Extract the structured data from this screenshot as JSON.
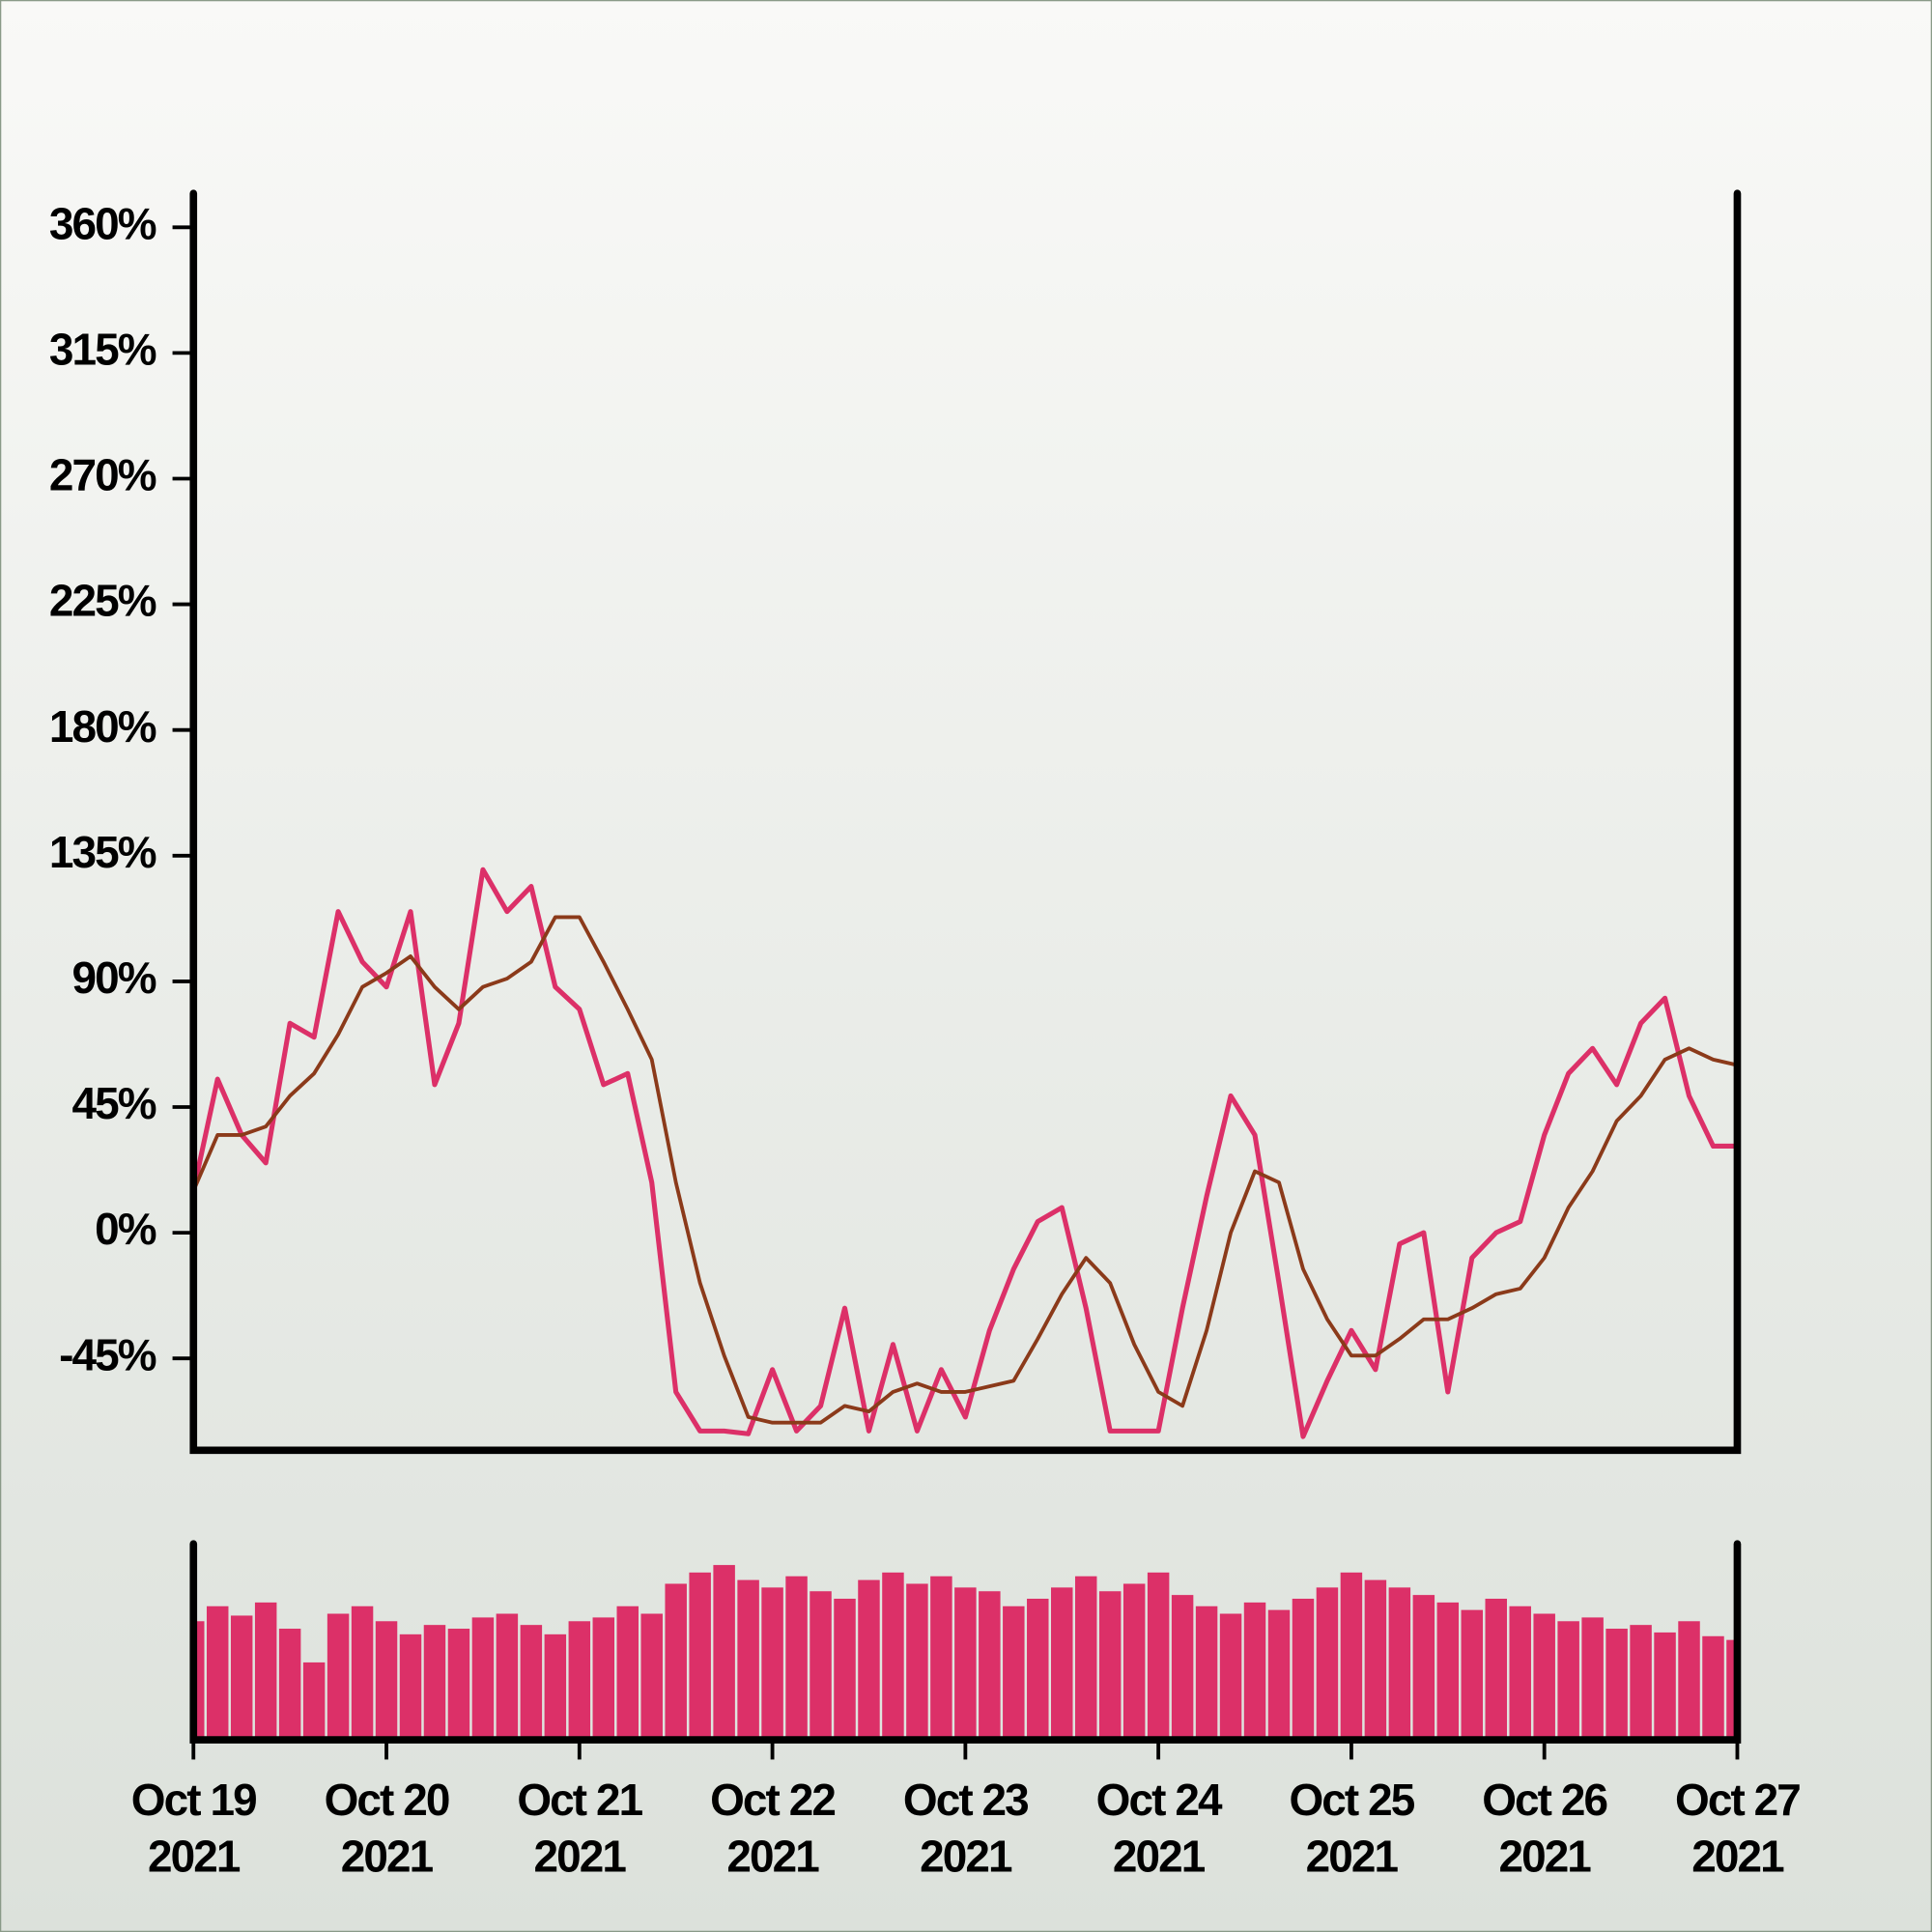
{
  "chart_data": [
    {
      "type": "line",
      "x": [
        "2021-10-19T00:00",
        "2021-10-19T03:00",
        "2021-10-19T06:00",
        "2021-10-19T09:00",
        "2021-10-19T12:00",
        "2021-10-19T15:00",
        "2021-10-19T18:00",
        "2021-10-19T21:00",
        "2021-10-20T00:00",
        "2021-10-20T03:00",
        "2021-10-20T06:00",
        "2021-10-20T09:00",
        "2021-10-20T12:00",
        "2021-10-20T15:00",
        "2021-10-20T18:00",
        "2021-10-20T21:00",
        "2021-10-21T00:00",
        "2021-10-21T03:00",
        "2021-10-21T06:00",
        "2021-10-21T09:00",
        "2021-10-21T12:00",
        "2021-10-21T15:00",
        "2021-10-21T18:00",
        "2021-10-21T21:00",
        "2021-10-22T00:00",
        "2021-10-22T03:00",
        "2021-10-22T06:00",
        "2021-10-22T09:00",
        "2021-10-22T12:00",
        "2021-10-22T15:00",
        "2021-10-22T18:00",
        "2021-10-22T21:00",
        "2021-10-23T00:00",
        "2021-10-23T03:00",
        "2021-10-23T06:00",
        "2021-10-23T09:00",
        "2021-10-23T12:00",
        "2021-10-23T15:00",
        "2021-10-23T18:00",
        "2021-10-23T21:00",
        "2021-10-24T00:00",
        "2021-10-24T03:00",
        "2021-10-24T06:00",
        "2021-10-24T09:00",
        "2021-10-24T12:00",
        "2021-10-24T15:00",
        "2021-10-24T18:00",
        "2021-10-24T21:00",
        "2021-10-25T00:00",
        "2021-10-25T03:00",
        "2021-10-25T06:00",
        "2021-10-25T09:00",
        "2021-10-25T12:00",
        "2021-10-25T15:00",
        "2021-10-25T18:00",
        "2021-10-25T21:00",
        "2021-10-26T00:00",
        "2021-10-26T03:00",
        "2021-10-26T06:00",
        "2021-10-26T09:00",
        "2021-10-26T12:00",
        "2021-10-26T15:00",
        "2021-10-26T18:00",
        "2021-10-26T21:00",
        "2021-10-27T00:00"
      ],
      "series": [
        {
          "color": "#dc3068",
          "values": [
            15,
            55,
            35,
            25,
            75,
            70,
            115,
            97,
            88,
            115,
            53,
            75,
            130,
            115,
            124,
            88,
            80,
            53,
            57,
            18,
            -57,
            -71,
            -71,
            -72,
            -49,
            -71,
            -62,
            -27,
            -71,
            -40,
            -71,
            -49,
            -66,
            -35,
            -13,
            4,
            9,
            -27,
            -71,
            -71,
            -71,
            -27,
            13,
            49,
            35,
            -18,
            -73,
            -53,
            -35,
            -49,
            -4,
            0,
            -57,
            -9,
            0,
            4,
            35,
            57,
            66,
            53,
            75,
            84,
            49,
            31,
            31
          ]
        },
        {
          "color": "#8b3a1a",
          "values": [
            15,
            35,
            35,
            38,
            49,
            57,
            71,
            88,
            93,
            99,
            88,
            80,
            88,
            91,
            97,
            113,
            113,
            97,
            80,
            62,
            18,
            -18,
            -44,
            -66,
            -68,
            -68,
            -68,
            -62,
            -64,
            -57,
            -54,
            -57,
            -57,
            -55,
            -53,
            -38,
            -22,
            -9,
            -18,
            -40,
            -57,
            -62,
            -35,
            0,
            22,
            18,
            -13,
            -31,
            -44,
            -44,
            -38,
            -31,
            -31,
            -27,
            -22,
            -20,
            -9,
            9,
            22,
            40,
            49,
            62,
            66,
            62,
            60
          ]
        }
      ],
      "xlim": [
        "2021-10-19T00:00",
        "2021-10-27T00:00"
      ],
      "xticks": [
        {
          "value": "2021-10-19T00:00",
          "label": "Oct 19\n2021"
        },
        {
          "value": "2021-10-20T00:00",
          "label": "Oct 20\n2021"
        },
        {
          "value": "2021-10-21T00:00",
          "label": "Oct 21\n2021"
        },
        {
          "value": "2021-10-22T00:00",
          "label": "Oct 22\n2021"
        },
        {
          "value": "2021-10-23T00:00",
          "label": "Oct 23\n2021"
        },
        {
          "value": "2021-10-24T00:00",
          "label": "Oct 24\n2021"
        },
        {
          "value": "2021-10-25T00:00",
          "label": "Oct 25\n2021"
        },
        {
          "value": "2021-10-26T00:00",
          "label": "Oct 26\n2021"
        },
        {
          "value": "2021-10-27T00:00",
          "label": "Oct 27\n2021"
        }
      ],
      "ylim": [
        -77,
        373
      ],
      "yticks": [
        {
          "value": -45,
          "label": "-45%"
        },
        {
          "value": 0,
          "label": "0%"
        },
        {
          "value": 45,
          "label": "45%"
        },
        {
          "value": 90,
          "label": "90%"
        },
        {
          "value": 135,
          "label": "135%"
        },
        {
          "value": 180,
          "label": "180%"
        },
        {
          "value": 225,
          "label": "225%"
        },
        {
          "value": 270,
          "label": "270%"
        },
        {
          "value": 315,
          "label": "315%"
        },
        {
          "value": 360,
          "label": "360%"
        }
      ]
    },
    {
      "type": "bar",
      "x": [
        "2021-10-19T00:00",
        "2021-10-19T03:00",
        "2021-10-19T06:00",
        "2021-10-19T09:00",
        "2021-10-19T12:00",
        "2021-10-19T15:00",
        "2021-10-19T18:00",
        "2021-10-19T21:00",
        "2021-10-20T00:00",
        "2021-10-20T03:00",
        "2021-10-20T06:00",
        "2021-10-20T09:00",
        "2021-10-20T12:00",
        "2021-10-20T15:00",
        "2021-10-20T18:00",
        "2021-10-20T21:00",
        "2021-10-21T00:00",
        "2021-10-21T03:00",
        "2021-10-21T06:00",
        "2021-10-21T09:00",
        "2021-10-21T12:00",
        "2021-10-21T15:00",
        "2021-10-21T18:00",
        "2021-10-21T21:00",
        "2021-10-22T00:00",
        "2021-10-22T03:00",
        "2021-10-22T06:00",
        "2021-10-22T09:00",
        "2021-10-22T12:00",
        "2021-10-22T15:00",
        "2021-10-22T18:00",
        "2021-10-22T21:00",
        "2021-10-23T00:00",
        "2021-10-23T03:00",
        "2021-10-23T06:00",
        "2021-10-23T09:00",
        "2021-10-23T12:00",
        "2021-10-23T15:00",
        "2021-10-23T18:00",
        "2021-10-23T21:00",
        "2021-10-24T00:00",
        "2021-10-24T03:00",
        "2021-10-24T06:00",
        "2021-10-24T09:00",
        "2021-10-24T12:00",
        "2021-10-24T15:00",
        "2021-10-24T18:00",
        "2021-10-24T21:00",
        "2021-10-25T00:00",
        "2021-10-25T03:00",
        "2021-10-25T06:00",
        "2021-10-25T09:00",
        "2021-10-25T12:00",
        "2021-10-25T15:00",
        "2021-10-25T18:00",
        "2021-10-25T21:00",
        "2021-10-26T00:00",
        "2021-10-26T03:00",
        "2021-10-26T06:00",
        "2021-10-26T09:00",
        "2021-10-26T12:00",
        "2021-10-26T15:00",
        "2021-10-26T18:00",
        "2021-10-26T21:00",
        "2021-10-27T00:00"
      ],
      "values": [
        62,
        70,
        65,
        72,
        58,
        40,
        66,
        70,
        62,
        55,
        60,
        58,
        64,
        66,
        60,
        55,
        62,
        64,
        70,
        66,
        82,
        88,
        92,
        84,
        80,
        86,
        78,
        74,
        84,
        88,
        82,
        86,
        80,
        78,
        70,
        74,
        80,
        86,
        78,
        82,
        88,
        76,
        70,
        66,
        72,
        68,
        74,
        80,
        88,
        84,
        80,
        76,
        72,
        68,
        74,
        70,
        66,
        62,
        64,
        58,
        60,
        56,
        62,
        54,
        52
      ],
      "color": "#dc3068",
      "ylim": [
        0,
        100
      ]
    }
  ]
}
